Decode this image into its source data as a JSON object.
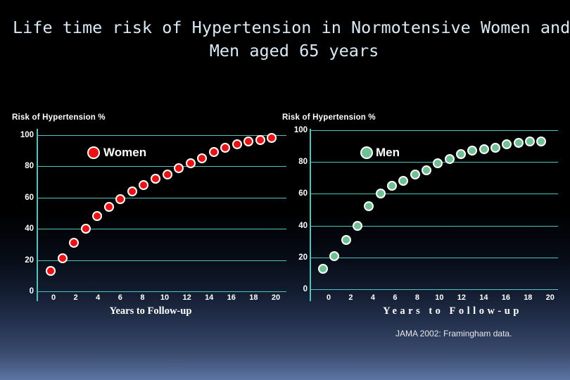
{
  "slide": {
    "title": {
      "line1": "Life time risk of Hypertension in Normotensive Women and",
      "line2": "Men aged 65 years"
    },
    "source_note": "JAMA 2002: Framingham data."
  },
  "colors": {
    "background_top": "#000000",
    "background_bottom": "#5b75a3",
    "title_text": "#d7eaf5",
    "grid_and_axis": "#50c5bd",
    "women_dot": "#ee1111",
    "men_dot": "#6dc292",
    "dot_border": "#ffffff",
    "label_text": "#ffffff"
  },
  "chart_data": [
    {
      "type": "scatter",
      "title": "Risk of Hypertension %",
      "xlabel": "Years to Follow-up",
      "x_ticks": [
        0,
        2,
        4,
        6,
        8,
        10,
        12,
        14,
        16,
        18,
        20
      ],
      "y_ticks": [
        0,
        20,
        40,
        60,
        80,
        100
      ],
      "xlim": [
        0,
        20
      ],
      "ylim": [
        0,
        100
      ],
      "grid": "horizontal-only",
      "legend_position": "inside-top-left",
      "series": [
        {
          "name": "Women",
          "color": "#ee1111",
          "x": [
            0,
            1,
            2,
            3,
            4,
            5,
            6,
            7,
            8,
            9,
            10,
            11,
            12,
            13,
            14,
            15,
            16,
            17,
            18,
            19
          ],
          "values": [
            13,
            21,
            31,
            40,
            48,
            54,
            59,
            64,
            68,
            72,
            75,
            79,
            82,
            85,
            89,
            92,
            94,
            96,
            97,
            98
          ]
        }
      ]
    },
    {
      "type": "scatter",
      "title": "Risk of Hypertension %",
      "xlabel": "Years to Follow-up",
      "x_ticks": [
        0,
        2,
        4,
        6,
        8,
        10,
        12,
        14,
        16,
        18,
        20
      ],
      "y_ticks": [
        0,
        20,
        40,
        60,
        80,
        100
      ],
      "xlim": [
        0,
        20
      ],
      "ylim": [
        0,
        100
      ],
      "grid": "horizontal-only",
      "legend_position": "inside-top-left",
      "series": [
        {
          "name": "Men",
          "color": "#6dc292",
          "x": [
            0,
            1,
            2,
            3,
            4,
            5,
            6,
            7,
            8,
            9,
            10,
            11,
            12,
            13,
            14,
            15,
            16,
            17,
            18,
            19
          ],
          "values": [
            13,
            21,
            31,
            40,
            52,
            60,
            65,
            68,
            72,
            75,
            79,
            82,
            85,
            87,
            88,
            89,
            91,
            92,
            93,
            93
          ]
        }
      ]
    }
  ]
}
